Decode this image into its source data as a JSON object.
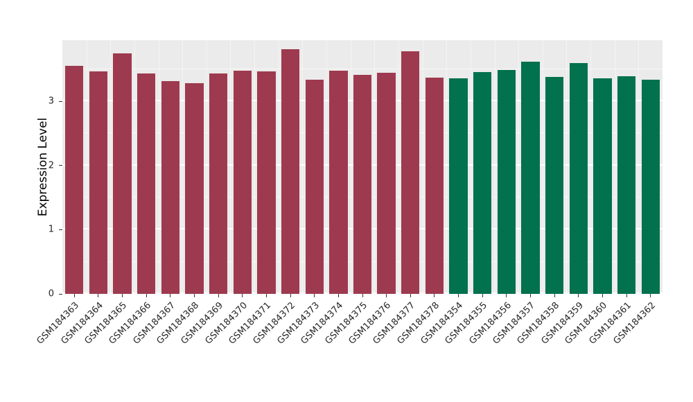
{
  "chart_data": {
    "type": "bar",
    "title": "",
    "xlabel": "",
    "ylabel": "Expression Level",
    "ylim": [
      0,
      3.95
    ],
    "yticks": [
      0,
      1,
      2,
      3
    ],
    "minor_yticks": [
      0.5,
      1.5,
      2.5,
      3.5
    ],
    "grid": true,
    "legend": "none",
    "plot_background": "#ebebeb",
    "categories": [
      "GSM184363",
      "GSM184364",
      "GSM184365",
      "GSM184366",
      "GSM184367",
      "GSM184368",
      "GSM184369",
      "GSM184370",
      "GSM184371",
      "GSM184372",
      "GSM184373",
      "GSM184374",
      "GSM184375",
      "GSM184376",
      "GSM184377",
      "GSM184378",
      "GSM184354",
      "GSM184355",
      "GSM184356",
      "GSM184357",
      "GSM184358",
      "GSM184359",
      "GSM184360",
      "GSM184361",
      "GSM184362"
    ],
    "values": [
      3.55,
      3.46,
      3.74,
      3.43,
      3.31,
      3.28,
      3.43,
      3.47,
      3.46,
      3.81,
      3.34,
      3.47,
      3.41,
      3.44,
      3.78,
      3.37,
      3.36,
      3.45,
      3.49,
      3.62,
      3.38,
      3.59,
      3.36,
      3.39,
      3.33
    ],
    "group_of_bar": [
      "group1",
      "group1",
      "group1",
      "group1",
      "group1",
      "group1",
      "group1",
      "group1",
      "group1",
      "group1",
      "group1",
      "group1",
      "group1",
      "group1",
      "group1",
      "group1",
      "group2",
      "group2",
      "group2",
      "group2",
      "group2",
      "group2",
      "group2",
      "group2",
      "group2"
    ],
    "group_colors": {
      "group1": "#9e3a4f",
      "group2": "#02714d"
    }
  }
}
